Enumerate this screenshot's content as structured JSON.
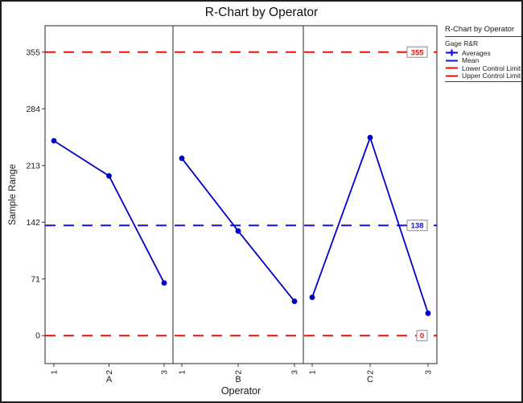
{
  "title": "R-Chart by Operator",
  "axes": {
    "y_label": "Sample Range",
    "x_label": "Operator",
    "y_ticks": [
      "0",
      "71",
      "142",
      "213",
      "284",
      "355"
    ],
    "x_ticks": [
      "1",
      "2",
      "3"
    ],
    "panel_labels": [
      "A",
      "B",
      "C"
    ]
  },
  "control_lines": {
    "ucl": {
      "label": "355",
      "value": 355,
      "color": "#e31212"
    },
    "mean": {
      "label": "138",
      "value": 138,
      "color": "#1212e3"
    },
    "lcl": {
      "label": "0",
      "value": 0,
      "color": "#e31212"
    }
  },
  "legend": {
    "title": "R-Chart by Operator",
    "subtitle": "Gage R&R",
    "items": [
      {
        "label": "Averages",
        "color": "#1212d6",
        "glyph": "marker-line"
      },
      {
        "label": "Mean",
        "color": "#1212e3",
        "glyph": "line"
      },
      {
        "label": "Lower Control Limit",
        "color": "#e31212",
        "glyph": "line"
      },
      {
        "label": "Upper Control Limit",
        "color": "#e31212",
        "glyph": "line"
      }
    ]
  },
  "chart_data": {
    "type": "line",
    "title": "R-Chart by Operator",
    "xlabel": "Operator",
    "ylabel": "Sample Range",
    "ylim": [
      -35,
      388
    ],
    "y_ticks": [
      0,
      71,
      142,
      213,
      284,
      355
    ],
    "grid": false,
    "legend_position": "right",
    "series_color": "#0000cd",
    "mean": 138,
    "ucl": 355,
    "lcl": 0,
    "panels": [
      {
        "label": "A",
        "x": [
          "1",
          "2",
          "3"
        ],
        "values": [
          244,
          200,
          66
        ]
      },
      {
        "label": "B",
        "x": [
          "1",
          "2",
          "3"
        ],
        "values": [
          222,
          131,
          43
        ]
      },
      {
        "label": "C",
        "x": [
          "1",
          "2",
          "3"
        ],
        "values": [
          48,
          248,
          28
        ]
      }
    ]
  }
}
